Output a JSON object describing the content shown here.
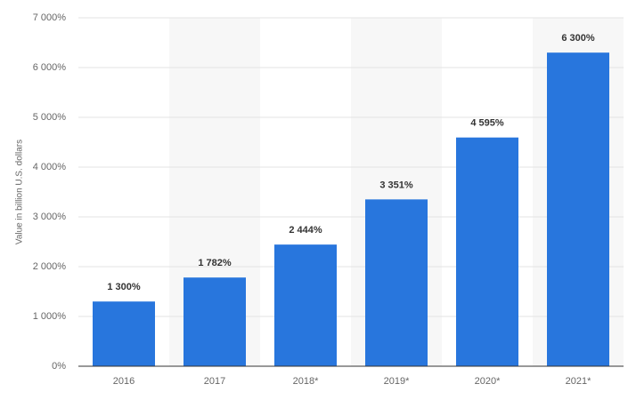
{
  "chart_data": {
    "type": "bar",
    "y_label": "Value in billion U.S. dollars",
    "categories": [
      "2016",
      "2017",
      "2018*",
      "2019*",
      "2020*",
      "2021*"
    ],
    "values": [
      1300,
      1782,
      2444,
      3351,
      4595,
      6300
    ],
    "value_labels": [
      "1 300%",
      "1 782%",
      "2 444%",
      "3 351%",
      "4 595%",
      "6 300%"
    ],
    "color": "#2876dd",
    "ylim": [
      0,
      7000
    ],
    "yticks": [
      {
        "value": 0,
        "label": "0%"
      },
      {
        "value": 1000,
        "label": "1 000%"
      },
      {
        "value": 2000,
        "label": "2 000%"
      },
      {
        "value": 3000,
        "label": "3 000%"
      },
      {
        "value": 4000,
        "label": "4 000%"
      },
      {
        "value": 5000,
        "label": "5 000%"
      },
      {
        "value": 6000,
        "label": "6 000%"
      },
      {
        "value": 7000,
        "label": "7 000%"
      }
    ],
    "grid": true
  }
}
